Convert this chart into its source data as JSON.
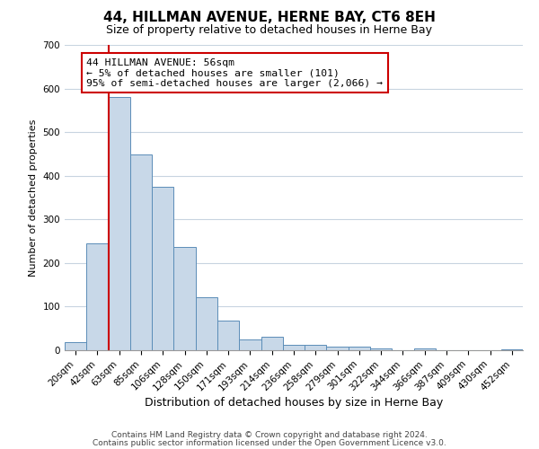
{
  "title": "44, HILLMAN AVENUE, HERNE BAY, CT6 8EH",
  "subtitle": "Size of property relative to detached houses in Herne Bay",
  "xlabel": "Distribution of detached houses by size in Herne Bay",
  "ylabel": "Number of detached properties",
  "bar_labels": [
    "20sqm",
    "42sqm",
    "63sqm",
    "85sqm",
    "106sqm",
    "128sqm",
    "150sqm",
    "171sqm",
    "193sqm",
    "214sqm",
    "236sqm",
    "258sqm",
    "279sqm",
    "301sqm",
    "322sqm",
    "344sqm",
    "366sqm",
    "387sqm",
    "409sqm",
    "430sqm",
    "452sqm"
  ],
  "bar_values": [
    18,
    246,
    581,
    449,
    375,
    236,
    122,
    68,
    25,
    31,
    13,
    13,
    9,
    9,
    5,
    0,
    4,
    0,
    0,
    0,
    3
  ],
  "bar_color": "#c8d8e8",
  "bar_edge_color": "#5b8db8",
  "annotation_text": "44 HILLMAN AVENUE: 56sqm\n← 5% of detached houses are smaller (101)\n95% of semi-detached houses are larger (2,066) →",
  "annotation_box_color": "#ffffff",
  "annotation_border_color": "#cc0000",
  "ylim": [
    0,
    700
  ],
  "yticks": [
    0,
    100,
    200,
    300,
    400,
    500,
    600,
    700
  ],
  "footer_line1": "Contains HM Land Registry data © Crown copyright and database right 2024.",
  "footer_line2": "Contains public sector information licensed under the Open Government Licence v3.0.",
  "background_color": "#ffffff",
  "grid_color": "#c8d4e0",
  "red_line_color": "#cc0000",
  "title_fontsize": 11,
  "subtitle_fontsize": 9,
  "ylabel_fontsize": 8,
  "xlabel_fontsize": 9,
  "tick_fontsize": 7.5,
  "footer_fontsize": 6.5
}
